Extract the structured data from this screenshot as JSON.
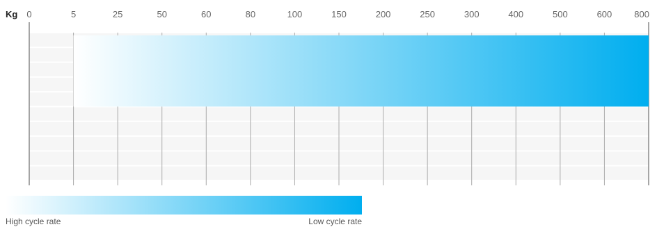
{
  "chart_data": {
    "type": "bar",
    "unit_label": "Kg",
    "ticks": [
      "0",
      "5",
      "25",
      "50",
      "60",
      "80",
      "100",
      "150",
      "200",
      "250",
      "300",
      "400",
      "500",
      "600",
      "800"
    ],
    "rows": 10,
    "bars": [
      {
        "row_start": 0,
        "row_end": 4,
        "from": "5",
        "to": "800"
      }
    ],
    "gradient": {
      "start": "#ffffff",
      "end": "#00aeef"
    },
    "legend": {
      "low_text": "High cycle rate",
      "high_text": "Low cycle rate"
    },
    "grid": true
  }
}
